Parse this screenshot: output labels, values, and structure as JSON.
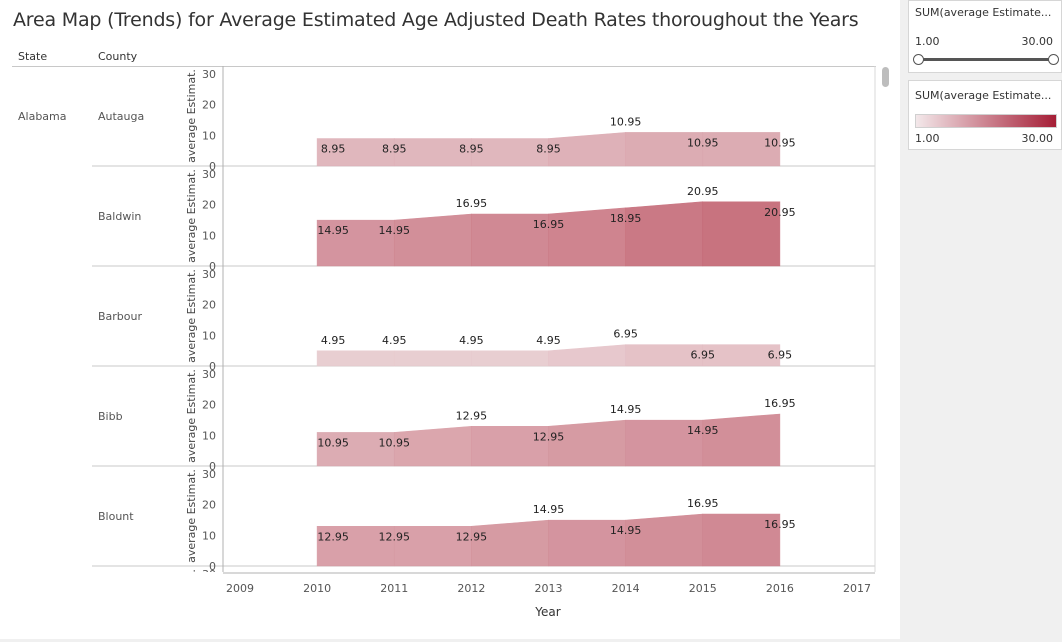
{
  "title": "Area Map (Trends) for Average Estimated Age Adjusted Death Rates thoroughout the Years",
  "headers": {
    "state": "State",
    "county": "County"
  },
  "state_label": "Alabama",
  "colors": {
    "light": "#f0e2e4",
    "dark": "#b03043",
    "axis": "#b0b0b0",
    "grid": "#d8d8d8"
  },
  "chart_data": {
    "type": "area",
    "x": [
      2010,
      2011,
      2012,
      2013,
      2014,
      2015,
      2016
    ],
    "xlim": [
      2009,
      2017
    ],
    "x_ticks": [
      "2009",
      "2010",
      "2011",
      "2012",
      "2013",
      "2014",
      "2015",
      "2016",
      "2017"
    ],
    "xlabel": "Year",
    "ylabel": "average Estimat.",
    "ylim": [
      0,
      30
    ],
    "y_ticks": [
      "0",
      "10",
      "20",
      "30"
    ],
    "color_measure": "SUM(average Estimated Age Adjusted Death Rate)",
    "series": [
      {
        "name": "Autauga",
        "values": [
          8.95,
          8.95,
          8.95,
          8.95,
          10.95,
          10.95,
          10.95
        ]
      },
      {
        "name": "Baldwin",
        "values": [
          14.95,
          14.95,
          16.95,
          16.95,
          18.95,
          20.95,
          20.95
        ]
      },
      {
        "name": "Barbour",
        "values": [
          4.95,
          4.95,
          4.95,
          4.95,
          6.95,
          6.95,
          6.95
        ]
      },
      {
        "name": "Bibb",
        "values": [
          10.95,
          10.95,
          12.95,
          12.95,
          14.95,
          14.95,
          16.95
        ]
      },
      {
        "name": "Blount",
        "values": [
          12.95,
          12.95,
          12.95,
          14.95,
          14.95,
          16.95,
          16.95
        ]
      }
    ],
    "labels": [
      [
        "8.95",
        "8.95",
        "8.95",
        "8.95",
        "10.95",
        "10.95",
        "10.95"
      ],
      [
        "14.95",
        "14.95",
        "16.95",
        "16.95",
        "18.95",
        "20.95",
        "20.95"
      ],
      [
        "4.95",
        "4.95",
        "4.95",
        "4.95",
        "6.95",
        "6.95",
        "6.95"
      ],
      [
        "10.95",
        "10.95",
        "12.95",
        "12.95",
        "14.95",
        "14.95",
        "16.95"
      ],
      [
        "12.95",
        "12.95",
        "12.95",
        "14.95",
        "14.95",
        "16.95",
        "16.95"
      ]
    ],
    "label_pos": [
      [
        "in",
        "in",
        "in",
        "in",
        "top",
        "in",
        "in"
      ],
      [
        "in",
        "in",
        "top",
        "in",
        "in",
        "top",
        "in"
      ],
      [
        "top",
        "top",
        "top",
        "top",
        "top",
        "in",
        "in"
      ],
      [
        "in",
        "in",
        "top",
        "in",
        "top",
        "in",
        "top"
      ],
      [
        "in",
        "in",
        "in",
        "top",
        "in",
        "top",
        "in"
      ]
    ]
  },
  "filter_card": {
    "title": "SUM(average Estimate...",
    "min": "1.00",
    "max": "30.00",
    "range": [
      1,
      30
    ]
  },
  "legend_card": {
    "title": "SUM(average Estimate...",
    "min": "1.00",
    "max": "30.00"
  }
}
